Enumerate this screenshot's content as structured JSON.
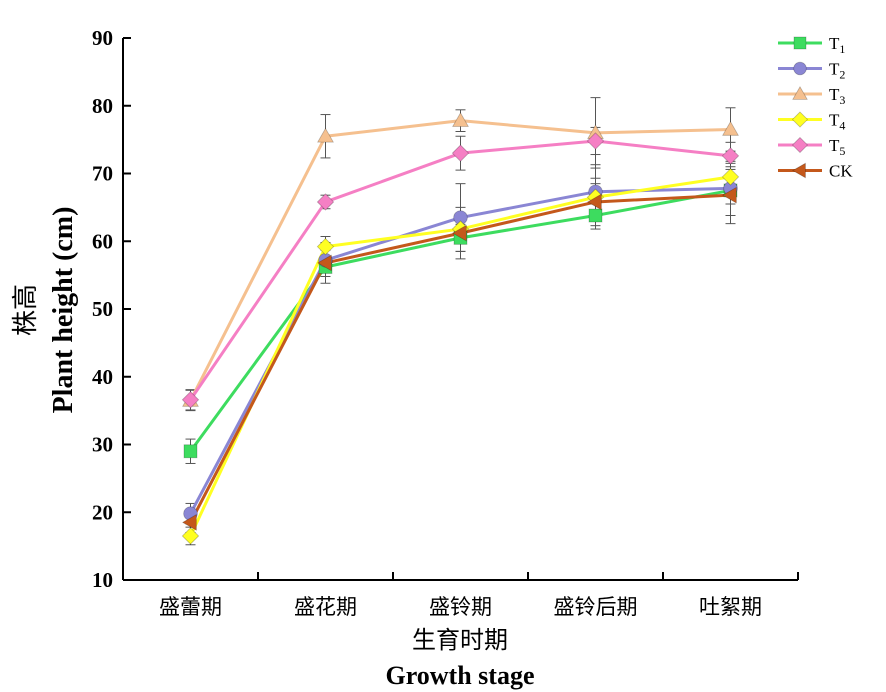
{
  "chart_data": {
    "type": "line",
    "categories": [
      "盛蕾期",
      "盛花期",
      "盛铃期",
      "盛铃后期",
      "吐絮期"
    ],
    "xlabel_cn": "生育时期",
    "xlabel_en": "Growth stage",
    "ylabel_cn": "株高",
    "ylabel_en": "Plant height (cm)",
    "ylim": [
      10,
      90
    ],
    "yticks": [
      10,
      20,
      30,
      40,
      50,
      60,
      70,
      80,
      90
    ],
    "legend_position": "top-right",
    "series": [
      {
        "name": "T",
        "sub": "1",
        "color": "#3ddc5f",
        "marker": "square",
        "values": [
          29.0,
          56.2,
          60.5,
          63.8,
          67.5
        ],
        "errors": [
          1.8,
          1.4,
          2.0,
          2.0,
          2.0
        ]
      },
      {
        "name": "T",
        "sub": "2",
        "color": "#8a86d4",
        "marker": "circle",
        "values": [
          19.8,
          57.2,
          63.5,
          67.3,
          67.8
        ],
        "errors": [
          1.5,
          1.5,
          5.0,
          4.0,
          4.0
        ]
      },
      {
        "name": "T",
        "sub": "3",
        "color": "#f5c08f",
        "marker": "triangle-up",
        "values": [
          36.5,
          75.5,
          77.8,
          76.0,
          76.5
        ],
        "errors": [
          1.5,
          3.2,
          1.6,
          5.2,
          3.2
        ]
      },
      {
        "name": "T",
        "sub": "4",
        "color": "#ffff22",
        "marker": "diamond",
        "values": [
          16.5,
          59.2,
          61.8,
          66.5,
          69.5
        ],
        "errors": [
          1.3,
          1.5,
          2.0,
          2.0,
          2.0
        ]
      },
      {
        "name": "T",
        "sub": "5",
        "color": "#f57fc4",
        "marker": "diamond",
        "values": [
          36.6,
          65.8,
          73.0,
          74.8,
          72.6
        ],
        "errors": [
          1.5,
          1.0,
          2.5,
          2.0,
          2.0
        ]
      },
      {
        "name": "CK",
        "sub": "",
        "color": "#c4581b",
        "marker": "triangle-left",
        "values": [
          18.5,
          56.8,
          61.2,
          65.8,
          66.8
        ],
        "errors": [
          1.5,
          3.0,
          3.8,
          3.5,
          4.2
        ]
      }
    ]
  }
}
